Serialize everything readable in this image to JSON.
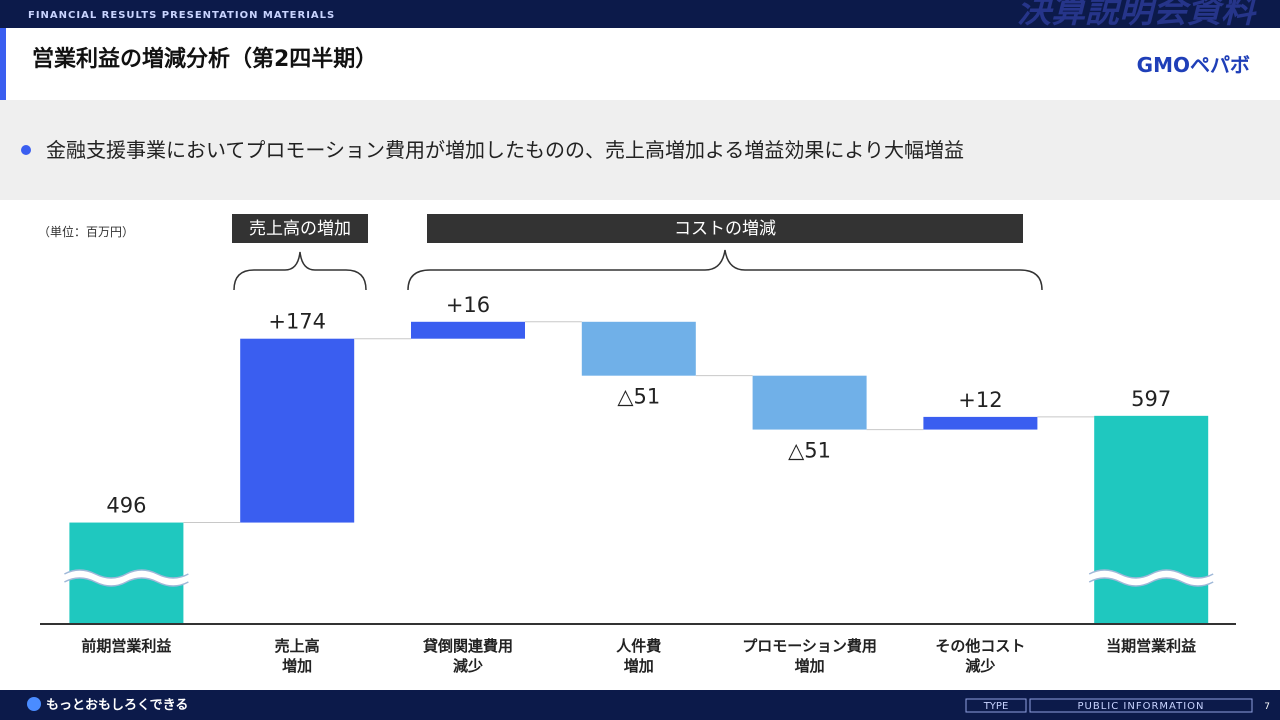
{
  "header": {
    "tagline": "FINANCIAL RESULTS PRESENTATION MATERIALS",
    "section": "決算説明会資料",
    "title": "営業利益の増減分析（第2四半期）",
    "logo": "GMOペパボ"
  },
  "summary": "金融支援事業においてプロモーション費用が増加したものの、売上高増加よる増益効果により大幅増益",
  "chart_data": {
    "type": "waterfall",
    "unit": "（単位：百万円）",
    "groups": [
      "売上高の増加",
      "コストの増減"
    ],
    "categories": [
      "前期営業利益",
      "売上高\n増加",
      "貸倒関連費用\n減少",
      "人件費\n増加",
      "プロモーション費用\n増加",
      "その他コスト\n減少",
      "当期営業利益"
    ],
    "measure": [
      "absolute",
      "relative",
      "relative",
      "relative",
      "relative",
      "relative",
      "absolute"
    ],
    "values": [
      496,
      174,
      16,
      -51,
      -51,
      12,
      597
    ],
    "value_labels": [
      "496",
      "+174",
      "+16",
      "△51",
      "△51",
      "+12",
      "597"
    ],
    "colors": {
      "total": "#1fc8bf",
      "increase": "#3a5ef0",
      "decrease": "#70b0e8"
    },
    "ylim": [
      400,
      700
    ],
    "axis_break": true
  },
  "footer": {
    "slogan": "もっとおもしろくできる",
    "type": "TYPE",
    "classification": "PUBLIC INFORMATION",
    "page": "7"
  }
}
